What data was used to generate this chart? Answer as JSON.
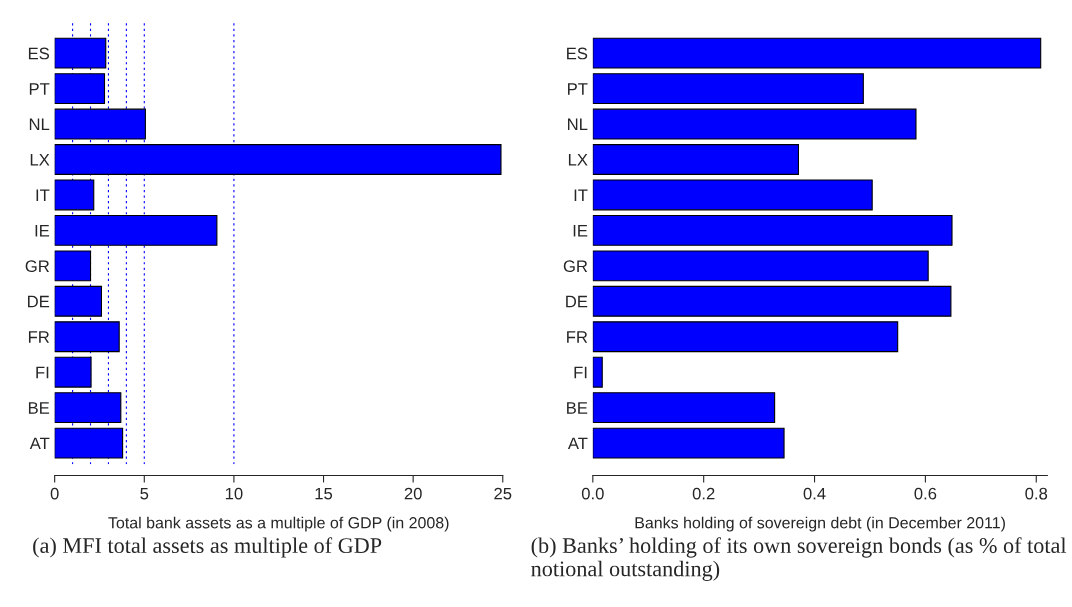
{
  "chart_data": [
    {
      "type": "bar",
      "orientation": "horizontal",
      "xlabel": "Total bank assets as a multiple of GDP (in 2008)",
      "categories": [
        "ES",
        "PT",
        "NL",
        "LX",
        "IT",
        "IE",
        "GR",
        "DE",
        "FR",
        "FI",
        "BE",
        "AT"
      ],
      "values": [
        2.85,
        2.78,
        5.06,
        24.9,
        2.18,
        9.05,
        2.0,
        2.61,
        3.6,
        2.03,
        3.69,
        3.79
      ],
      "color": "#0000ff",
      "xlim": [
        0,
        25
      ],
      "xticks": [
        0,
        5,
        10,
        15,
        20,
        25
      ],
      "grid": false,
      "legend": false,
      "ref_lines": [
        {
          "axis": "x",
          "value": 1,
          "color": "#0000ff",
          "line_style": "dotted"
        },
        {
          "axis": "x",
          "value": 2,
          "color": "#0000ff",
          "line_style": "dotted"
        },
        {
          "axis": "x",
          "value": 3,
          "color": "#0000ff",
          "line_style": "dotted"
        },
        {
          "axis": "x",
          "value": 4,
          "color": "#0000ff",
          "line_style": "dotted"
        },
        {
          "axis": "x",
          "value": 5,
          "color": "#0000ff",
          "line_style": "dotted"
        },
        {
          "axis": "x",
          "value": 10,
          "color": "#0000ff",
          "line_style": "dotted"
        }
      ],
      "annotations": [
        "(a) MFI total assets as multiple of GDP"
      ]
    },
    {
      "type": "bar",
      "orientation": "horizontal",
      "xlabel": "Banks holding of sovereign debt (in December 2011)",
      "categories": [
        "ES",
        "PT",
        "NL",
        "LX",
        "IT",
        "IE",
        "GR",
        "DE",
        "FR",
        "FI",
        "BE",
        "AT"
      ],
      "values": [
        0.808,
        0.488,
        0.583,
        0.371,
        0.504,
        0.648,
        0.605,
        0.646,
        0.55,
        0.017,
        0.328,
        0.345
      ],
      "color": "#0000ff",
      "xlim": [
        0,
        0.82
      ],
      "xticks": [
        {
          "value": 0,
          "label": "0.0"
        },
        0.2,
        0.4,
        0.6,
        0.8
      ],
      "grid": false,
      "legend": false,
      "annotations": [
        "(b) Banks’ holding of its own sovereign bonds (as % of total notional outstanding)"
      ]
    }
  ]
}
